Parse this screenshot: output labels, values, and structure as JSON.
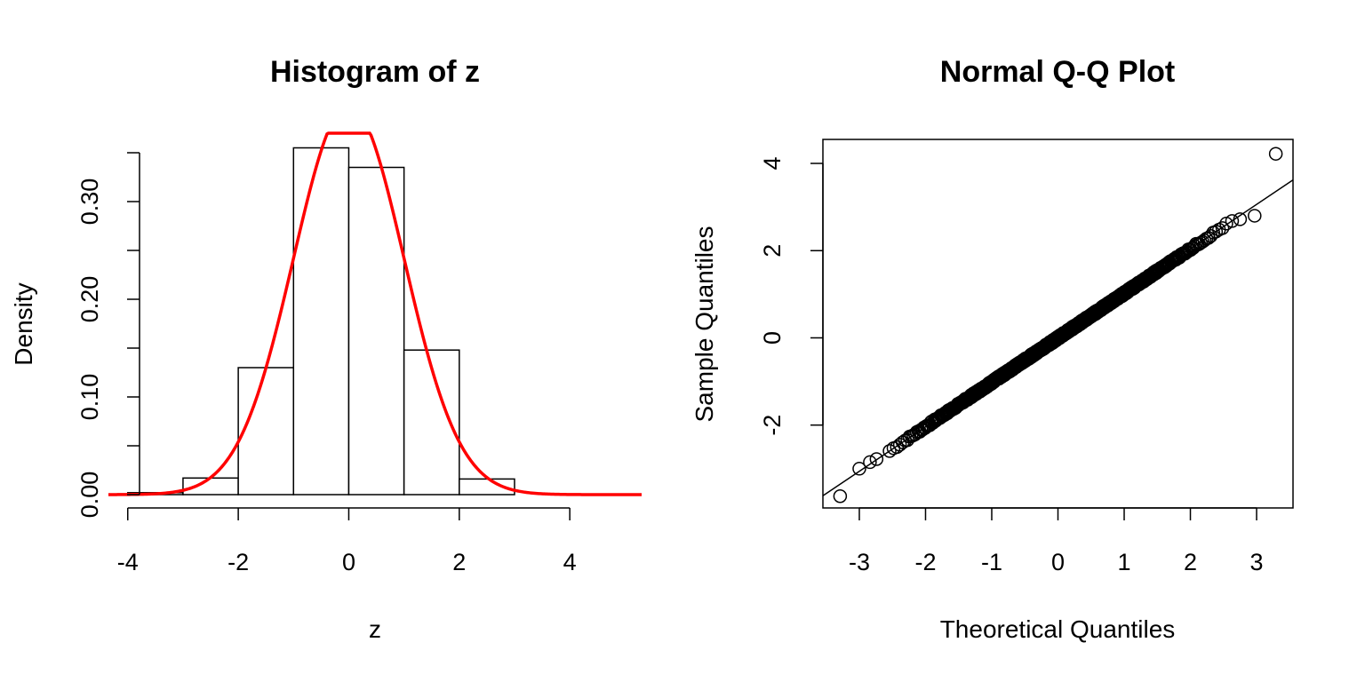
{
  "chart_data": [
    {
      "type": "bar",
      "subtype": "histogram",
      "title": "Histogram of z",
      "xlabel": "z",
      "ylabel": "Density",
      "breaks": [
        -4,
        -3,
        -2,
        -1,
        0,
        1,
        2,
        3
      ],
      "values": [
        0.002,
        0.017,
        0.13,
        0.355,
        0.335,
        0.148,
        0.016
      ],
      "xlim": [
        -4.35,
        5.3
      ],
      "ylim": [
        0,
        0.37
      ],
      "x_ticks": [
        "-4",
        "-2",
        "0",
        "2",
        "4"
      ],
      "y_ticks": [
        "0.00",
        "0.10",
        "0.20",
        "0.30"
      ],
      "y_minor_ticks": [
        0.05,
        0.15,
        0.25,
        0.35
      ],
      "overlay_curve": {
        "type": "normal_density",
        "mean": 0,
        "sd": 1,
        "color": "#ff0000"
      },
      "bar_color": "#ffffff"
    },
    {
      "type": "scatter",
      "subtype": "qq",
      "title": "Normal Q-Q Plot",
      "xlabel": "Theoretical Quantiles",
      "ylabel": "Sample Quantiles",
      "xlim": [
        -3.55,
        3.55
      ],
      "ylim": [
        -3.9,
        4.55
      ],
      "x_ticks": [
        "-3",
        "-2",
        "-1",
        "0",
        "1",
        "2",
        "3"
      ],
      "y_ticks": [
        "-2",
        "0",
        "2",
        "4"
      ],
      "n_points": 1000,
      "reference_line": {
        "intercept": 0,
        "slope": 1.02
      },
      "outliers": [
        {
          "x": 3.29,
          "y": 4.22
        },
        {
          "x": -3.29,
          "y": -3.63
        },
        {
          "x": -3.0,
          "y": -3.0
        },
        {
          "x": 2.97,
          "y": 2.8
        },
        {
          "x": -2.84,
          "y": -2.85
        },
        {
          "x": -2.74,
          "y": -2.78
        },
        {
          "x": 2.75,
          "y": 2.72
        },
        {
          "x": 2.63,
          "y": 2.68
        }
      ]
    }
  ]
}
